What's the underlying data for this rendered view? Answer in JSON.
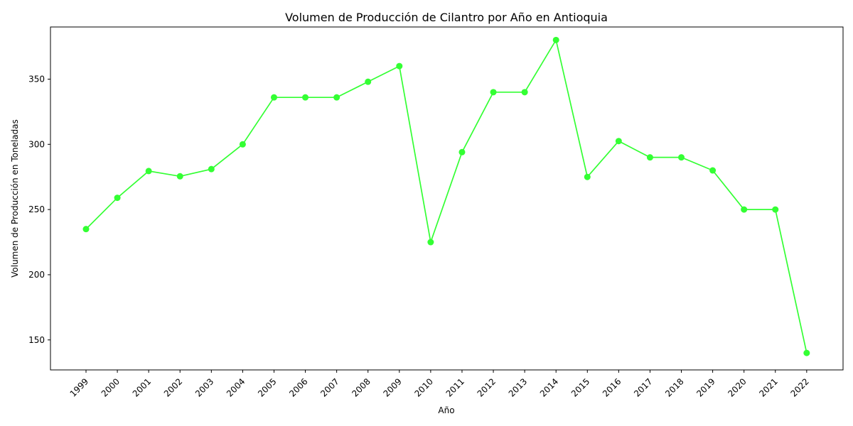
{
  "chart_data": {
    "type": "line",
    "title": "Volumen de Producción de Cilantro por Año en Antioquia",
    "xlabel": "Año",
    "ylabel": "Volumen de Producción en Toneladas",
    "categories": [
      "1999",
      "2000",
      "2001",
      "2002",
      "2003",
      "2004",
      "2005",
      "2006",
      "2007",
      "2008",
      "2009",
      "2010",
      "2011",
      "2012",
      "2013",
      "2014",
      "2015",
      "2016",
      "2017",
      "2018",
      "2019",
      "2020",
      "2021",
      "2022"
    ],
    "series": [
      {
        "color": "#33ff33",
        "marker": "circle",
        "values": [
          235,
          259,
          279.5,
          275.5,
          281,
          300,
          336,
          336,
          336,
          348,
          360,
          225,
          294,
          340,
          340,
          380,
          275,
          302.5,
          290,
          290,
          280,
          250,
          250,
          140
        ]
      }
    ],
    "ylim": [
      127,
      390
    ],
    "yticks": [
      150,
      200,
      250,
      300,
      350
    ],
    "grid": false,
    "legend": "none"
  }
}
